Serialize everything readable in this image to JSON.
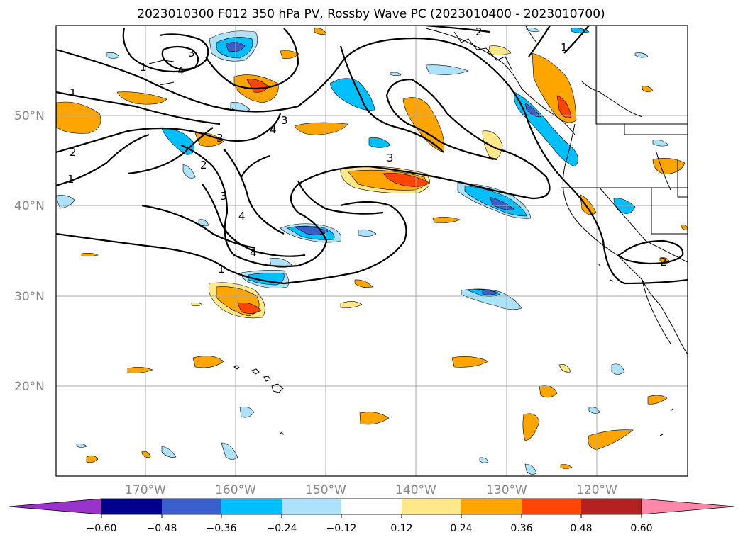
{
  "title": "2023010300 F012 350 hPa PV, Rossby Wave PC (2023010400 - 2023010700)",
  "map": {
    "lat_labels": [
      "50°N",
      "40°N",
      "30°N",
      "20°N"
    ],
    "lon_labels": [
      "170°W",
      "160°W",
      "150°W",
      "140°W",
      "130°W",
      "120°W"
    ],
    "contour_labels": [
      "1",
      "2",
      "3",
      "4"
    ]
  },
  "colorbar": {
    "ticks": [
      "−0.60",
      "−0.48",
      "−0.36",
      "−0.24",
      "−0.12",
      "0.12",
      "0.24",
      "0.36",
      "0.48",
      "0.60"
    ],
    "colors": [
      "#9933cc",
      "#00008b",
      "#3a5fcd",
      "#00bfff",
      "#aee2fa",
      "#ffffff",
      "#ffe88a",
      "#ffa500",
      "#ff4500",
      "#b22222",
      "#ff88aa"
    ]
  }
}
